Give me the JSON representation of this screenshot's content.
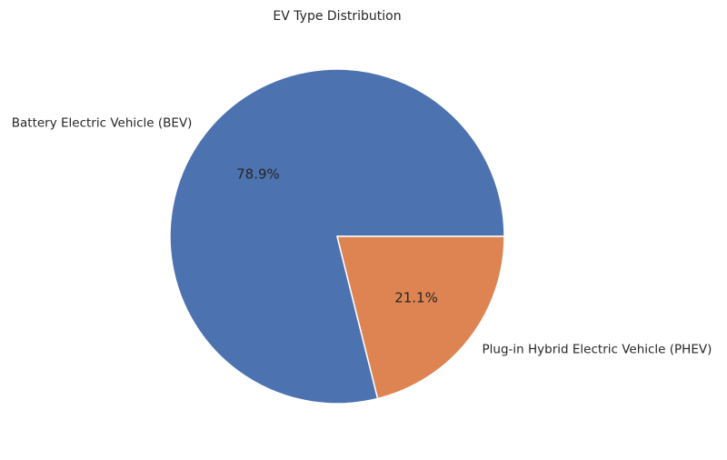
{
  "chart_data": {
    "type": "pie",
    "title": "EV Type Distribution",
    "categories": [
      "Battery Electric Vehicle (BEV)",
      "Plug-in Hybrid Electric Vehicle (PHEV)"
    ],
    "values": [
      78.9,
      21.1
    ],
    "percent_labels": [
      "78.9%",
      "21.1%"
    ],
    "colors": [
      "#4c72b0",
      "#dd8452"
    ],
    "start_angle_deg": 0,
    "direction": "counterclockwise",
    "legend": "none"
  }
}
